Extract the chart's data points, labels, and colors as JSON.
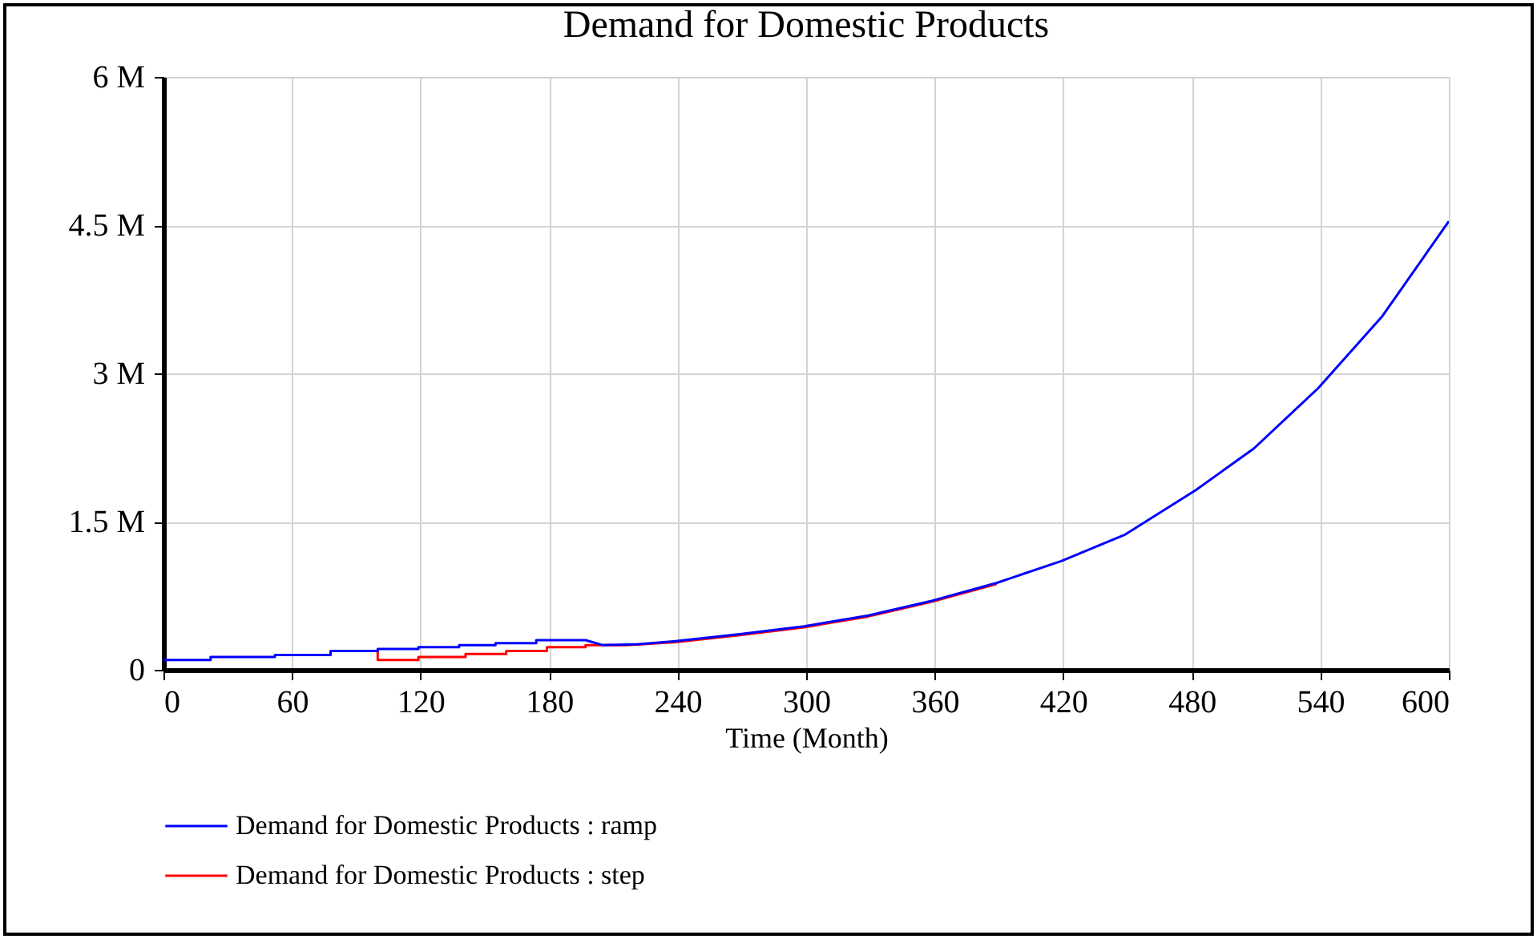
{
  "chart_data": {
    "type": "line",
    "title": "Demand for Domestic Products",
    "xlabel": "Time (Month)",
    "xlim": [
      0,
      600
    ],
    "xticks": [
      0,
      60,
      120,
      180,
      240,
      300,
      360,
      420,
      480,
      540,
      600
    ],
    "ylim": [
      0,
      6000000
    ],
    "yticks": [
      {
        "value": 0,
        "label": "0"
      },
      {
        "value": 1500000,
        "label": "1.5 M"
      },
      {
        "value": 3000000,
        "label": "3 M"
      },
      {
        "value": 4500000,
        "label": "4.5 M"
      },
      {
        "value": 6000000,
        "label": "6 M"
      }
    ],
    "grid": true,
    "legend": "bottom",
    "series": [
      {
        "name": "Demand for Domestic Products : ramp",
        "color": "#0000ff",
        "x": [
          0,
          22,
          22,
          52,
          52,
          78,
          78,
          100,
          100,
          119,
          119,
          138,
          138,
          155,
          155,
          174,
          174,
          197,
          205,
          222,
          239,
          269,
          299,
          329,
          359,
          389,
          419,
          449,
          482,
          509,
          539,
          569,
          600
        ],
        "values": [
          100000,
          100000,
          130000,
          130000,
          150000,
          150000,
          190000,
          190000,
          210000,
          210000,
          230000,
          230000,
          250000,
          250000,
          270000,
          270000,
          300000,
          300000,
          250000,
          260000,
          290000,
          360000,
          440000,
          550000,
          700000,
          880000,
          1100000,
          1370000,
          1820000,
          2240000,
          2850000,
          3580000,
          4540000
        ]
      },
      {
        "name": "Demand for Domestic Products : step",
        "color": "#ff0000",
        "x": [
          100,
          100,
          119,
          119,
          141,
          141,
          160,
          160,
          179,
          179,
          197,
          197,
          216,
          239,
          269,
          299,
          329,
          359,
          389
        ],
        "values": [
          190000,
          100000,
          100000,
          130000,
          130000,
          160000,
          160000,
          190000,
          190000,
          230000,
          230000,
          250000,
          250000,
          280000,
          350000,
          430000,
          540000,
          690000,
          870000
        ]
      }
    ]
  }
}
